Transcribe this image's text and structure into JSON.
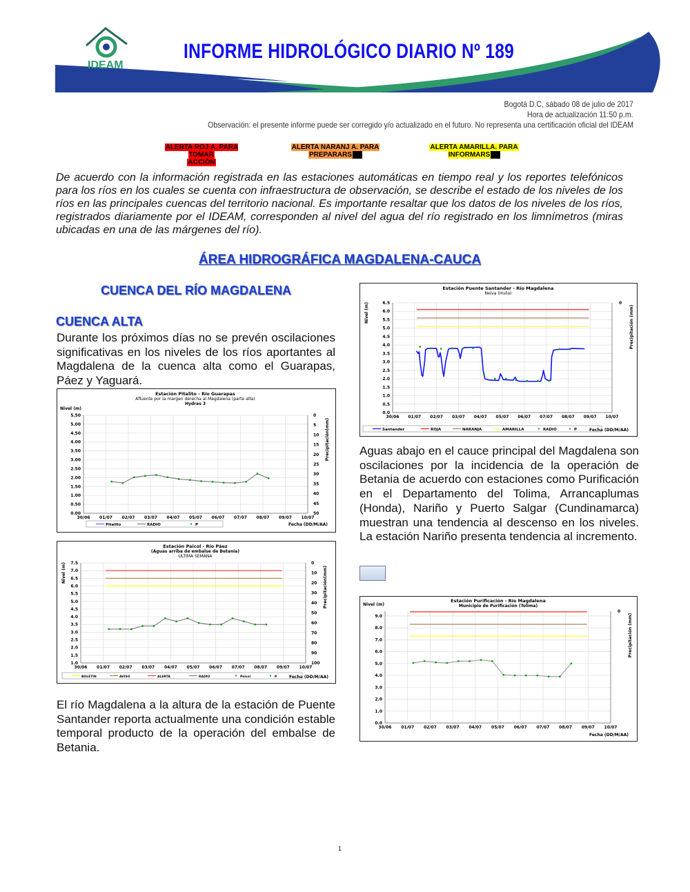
{
  "header": {
    "logo_text": "IDEAM",
    "title": "INFORME HIDROLÓGICO DIARIO Nº 189",
    "colors": {
      "blue": "#22409a",
      "green": "#2f9a6a",
      "title": "#1010f0"
    }
  },
  "meta": {
    "date": "Bogotá D.C, sábado 08 de julio de 2017",
    "update": "Hora de actualización 11:50 p.m.",
    "observation": "Observación: el presente informe puede ser corregido y/o actualizado en el futuro. No representa una certificación oficial del IDEAM"
  },
  "alerts": [
    {
      "line1": "ALERTA ROJ A. PARA TOMAR",
      "line2": "ACCIÓN",
      "color": "#ff0000"
    },
    {
      "line1": "ALERTA NARANJ A. PARA",
      "line2": "PREPARARS",
      "color": "#f79646"
    },
    {
      "line1": "ALERTA AMARILLA. PARA",
      "line2": "INFORMARS",
      "color": "#ffff00"
    }
  ],
  "intro": "De acuerdo con la información registrada en las estaciones automáticas en tiempo real y los reportes telefónicos para los ríos en los cuales se cuenta con infraestructura de observación, se describe el estado de los niveles de los ríos en las principales cuencas del territorio nacional. Es importante resaltar que los datos de los niveles de los ríos, registrados diariamente por el IDEAM, corresponden al nivel del agua del río registrado en los limnímetros (miras ubicadas en una de las márgenes del río).",
  "area_title": "ÁREA HIDROGRÁFICA MAGDALENA-CAUCA",
  "cuenca_title": "CUENCA DEL RÍO MAGDALENA",
  "subcuenca_title": "CUENCA ALTA",
  "paragraphs": {
    "alta": "Durante los próximos días no se prevén oscilaciones significativas en los niveles de los ríos aportantes al Magdalena de la cuenca alta como el Guarapas, Páez y Yaguará.",
    "santander": "El río Magdalena a la altura de la estación de Puente Santander reporta actualmente una condición estable temporal producto de la operación del embalse de Betania.",
    "cauce": "Aguas abajo en el cauce principal del Magdalena son oscilaciones por la incidencia de la operación de Betania de acuerdo con estaciones como Purificación en el Departamento del Tolima, Arrancaplumas (Honda), Nariño y Puerto Salgar (Cundinamarca) muestran una tendencia al descenso en los niveles. La estación Nariño presenta tendencia al incremento."
  },
  "page_number": "1",
  "chart_data": [
    {
      "id": "pitalito",
      "type": "line",
      "title": "Estación Pitalito  - Río Guarapas",
      "subtitle": "Afluente por la margen derecha al Magdalena (parte alta)",
      "subtitle2": "Hydras 3",
      "ylabel": "Nivel (m)",
      "y2label": "Precipitación(mm)",
      "xlabel": "Fecha (DD/M/AA)",
      "ylim": [
        0,
        5.5
      ],
      "yticks": [
        "0.00",
        "0.50",
        "1.00",
        "1.50",
        "2.00",
        "2.50",
        "3.00",
        "3.50",
        "4.00",
        "4.50",
        "5.00",
        "5.50"
      ],
      "y2ticks": [
        "0",
        "5",
        "10",
        "15",
        "20",
        "25",
        "30",
        "35",
        "40",
        "45",
        "50"
      ],
      "xticks": [
        "30/06",
        "01/07",
        "02/07",
        "03/07",
        "04/07",
        "05/07",
        "06/07",
        "07/07",
        "08/07",
        "09/07",
        "10/07"
      ],
      "grid": true,
      "thresholds": [],
      "series": [
        {
          "name": "Pitalito",
          "color": "#6666ff",
          "points": []
        },
        {
          "name": "RADIO",
          "color": "#808080",
          "marker": "#00a000",
          "points": [
            [
              "01/07 06:00",
              1.78
            ],
            [
              "01/07 18:00",
              1.7
            ],
            [
              "02/07 06:00",
              2.02
            ],
            [
              "02/07 18:00",
              2.1
            ],
            [
              "03/07 06:00",
              2.15
            ],
            [
              "03/07 18:00",
              2.02
            ],
            [
              "04/07 06:00",
              1.92
            ],
            [
              "04/07 18:00",
              1.87
            ],
            [
              "05/07 06:00",
              1.8
            ],
            [
              "05/07 18:00",
              1.77
            ],
            [
              "06/07 06:00",
              1.72
            ],
            [
              "06/07 18:00",
              1.7
            ],
            [
              "07/07 06:00",
              1.77
            ],
            [
              "07/07 18:00",
              2.22
            ],
            [
              "08/07 06:00",
              1.97
            ]
          ]
        },
        {
          "name": "P",
          "color": "#00a000",
          "points": []
        }
      ]
    },
    {
      "id": "paicol",
      "type": "line",
      "title": "Estación Paicol  - Río Páez",
      "subtitle": "(Aguas arriba de embalse de Betania)",
      "subtitle2": "ULTIMA SEMANA",
      "ylabel": "Nivel (m)",
      "y2label": "Precipitación(mm)",
      "xlabel": "Fecha (DD/M/AA)",
      "ylim": [
        1,
        7.5
      ],
      "yticks": [
        "1.0",
        "1.5",
        "2.0",
        "2.5",
        "3.0",
        "3.5",
        "4.0",
        "4.5",
        "5.0",
        "5.5",
        "6.0",
        "6.5",
        "7.0",
        "7.5"
      ],
      "y2ticks": [
        "0",
        "10",
        "20",
        "30",
        "40",
        "50",
        "60",
        "70",
        "80",
        "90",
        "100"
      ],
      "xticks": [
        "30/06",
        "01/07",
        "02/07",
        "03/07",
        "04/07",
        "05/07",
        "06/07",
        "07/07",
        "08/07",
        "09/07",
        "10/07"
      ],
      "grid": true,
      "thresholds": [
        {
          "name": "BOLETIN",
          "value": 6.0,
          "color": "#ffff00"
        },
        {
          "name": "AVISO",
          "value": 6.5,
          "color": "#b07a40"
        },
        {
          "name": "ALERTA",
          "value": 7.0,
          "color": "#ff4040"
        }
      ],
      "series": [
        {
          "name": "RADIO",
          "color": "#808080",
          "marker": "#00a000",
          "points": [
            [
              "01/07 06:00",
              3.2
            ],
            [
              "01/07 18:00",
              3.2
            ],
            [
              "02/07 06:00",
              3.2
            ],
            [
              "02/07 18:00",
              3.4
            ],
            [
              "03/07 06:00",
              3.4
            ],
            [
              "03/07 18:00",
              3.9
            ],
            [
              "04/07 06:00",
              3.7
            ],
            [
              "04/07 18:00",
              3.9
            ],
            [
              "05/07 06:00",
              3.6
            ],
            [
              "05/07 18:00",
              3.5
            ],
            [
              "06/07 06:00",
              3.5
            ],
            [
              "06/07 18:00",
              3.9
            ],
            [
              "07/07 06:00",
              3.7
            ],
            [
              "07/07 18:00",
              3.5
            ],
            [
              "08/07 06:00",
              3.5
            ]
          ]
        },
        {
          "name": "Paicol",
          "color": "#4060c0",
          "points": []
        },
        {
          "name": "P",
          "color": "#00a000",
          "points": []
        }
      ]
    },
    {
      "id": "santander",
      "type": "line",
      "title": "Estación Puente Santander - Río Magdalena",
      "subtitle": "Neiva (Huila)",
      "subtitle2": "",
      "ylabel": "Nivel (m)",
      "y2label": "Precipitación (mm)",
      "xlabel": "Fecha (DD/M/AA)",
      "ylim": [
        0,
        6.5
      ],
      "yticks": [
        "0.0",
        "0.5",
        "1.0",
        "1.5",
        "2.0",
        "2.5",
        "3.0",
        "3.5",
        "4.0",
        "4.5",
        "5.0",
        "5.5",
        "6.0",
        "6.5"
      ],
      "y2ticks": [
        "0"
      ],
      "xticks": [
        "30/06",
        "01/07",
        "02/07",
        "03/07",
        "04/07",
        "05/07",
        "06/07",
        "07/07",
        "08/07",
        "09/07",
        "10/07"
      ],
      "grid": true,
      "thresholds": [
        {
          "name": "ROJA",
          "value": 6.1,
          "color": "#ff2020"
        },
        {
          "name": "NARANJA",
          "value": 5.6,
          "color": "#b08060"
        },
        {
          "name": "AMARILLA",
          "value": 5.1,
          "color": "#ffff40"
        }
      ],
      "series": [
        {
          "name": "Santander",
          "color": "#1010ff",
          "points": [
            [
              "01/07 02:00",
              3.65
            ],
            [
              "01/07 04:00",
              3.5
            ],
            [
              "01/07 05:00",
              3.6
            ],
            [
              "01/07 06:00",
              3.0
            ],
            [
              "01/07 08:00",
              2.2
            ],
            [
              "01/07 09:00",
              2.15
            ],
            [
              "01/07 11:00",
              3.0
            ],
            [
              "01/07 12:00",
              3.7
            ],
            [
              "01/07 14:00",
              3.8
            ],
            [
              "02/07 00:00",
              3.8
            ],
            [
              "02/07 02:00",
              3.3
            ],
            [
              "02/07 03:00",
              3.3
            ],
            [
              "02/07 04:00",
              3.55
            ],
            [
              "02/07 05:00",
              3.3
            ],
            [
              "02/07 07:00",
              2.4
            ],
            [
              "02/07 08:00",
              2.15
            ],
            [
              "02/07 10:00",
              3.0
            ],
            [
              "02/07 13:00",
              3.75
            ],
            [
              "02/07 15:00",
              3.8
            ],
            [
              "02/07 23:00",
              3.8
            ],
            [
              "03/07 01:00",
              3.5
            ],
            [
              "03/07 02:00",
              3.2
            ],
            [
              "03/07 04:00",
              3.75
            ],
            [
              "03/07 06:00",
              3.85
            ],
            [
              "03/07 23:00",
              3.87
            ],
            [
              "04/07 01:00",
              3.8
            ],
            [
              "04/07 03:00",
              2.5
            ],
            [
              "04/07 05:00",
              2.0
            ],
            [
              "04/07 09:00",
              1.93
            ],
            [
              "04/07 20:00",
              1.9
            ],
            [
              "04/07 22:00",
              2.3
            ],
            [
              "05/07 01:00",
              1.95
            ],
            [
              "05/07 12:00",
              1.92
            ],
            [
              "05/07 14:00",
              2.1
            ],
            [
              "05/07 16:00",
              1.9
            ],
            [
              "05/07 19:00",
              1.85
            ],
            [
              "06/07 18:00",
              1.85
            ],
            [
              "06/07 20:00",
              2.2
            ],
            [
              "06/07 21:00",
              2.5
            ],
            [
              "06/07 23:00",
              2.0
            ],
            [
              "07/07 02:00",
              1.9
            ],
            [
              "07/07 05:00",
              1.92
            ],
            [
              "07/07 06:00",
              3.3
            ],
            [
              "07/07 08:00",
              3.7
            ],
            [
              "07/07 14:00",
              3.75
            ],
            [
              "08/07 00:00",
              3.75
            ],
            [
              "08/07 04:00",
              3.8
            ],
            [
              "08/07 18:00",
              3.78
            ]
          ]
        },
        {
          "name": "RADIO",
          "color": "#00a000",
          "marker": "#00a000",
          "markersOnly": true,
          "points": [
            [
              "01/07 06:00",
              3.9
            ],
            [
              "01/07 18:00",
              3.8
            ],
            [
              "02/07 05:00",
              3.78
            ],
            [
              "02/07 17:00",
              3.8
            ],
            [
              "03/07 05:00",
              3.8
            ],
            [
              "03/07 16:00",
              3.82
            ],
            [
              "04/07 04:00",
              2.25
            ],
            [
              "04/07 16:00",
              2.0
            ],
            [
              "05/07 04:00",
              2.0
            ],
            [
              "05/07 15:00",
              1.92
            ],
            [
              "06/07 03:00",
              1.88
            ],
            [
              "06/07 15:00",
              1.88
            ],
            [
              "07/07 03:00",
              1.88
            ],
            [
              "07/07 14:00",
              3.75
            ],
            [
              "08/07 02:00",
              3.75
            ]
          ]
        },
        {
          "name": "P",
          "color": "#00a000",
          "points": []
        }
      ]
    },
    {
      "id": "purificacion",
      "type": "line",
      "title": "Estación Purificación - Río Magdalena",
      "subtitle": "Municipio de Purificación (Tolima)",
      "subtitle2": "",
      "ylabel": "Nivel (m)",
      "y2label": "Precipitación (mm)",
      "xlabel": "Fecha (DD/M/AA)",
      "ylim": [
        0,
        9.4
      ],
      "yticks": [
        "0.0",
        "1.0",
        "2.0",
        "3.0",
        "4.0",
        "5.0",
        "6.0",
        "7.0",
        "8.0",
        "9.0"
      ],
      "y2ticks": [
        "0"
      ],
      "xticks": [
        "30/06",
        "01/07",
        "02/07",
        "03/07",
        "04/07",
        "05/07",
        "06/07",
        "07/07",
        "08/07",
        "09/07",
        "10/07"
      ],
      "grid": true,
      "thresholds": [
        {
          "value": 9.35,
          "color": "#ff2020"
        },
        {
          "value": 8.3,
          "color": "#a07050"
        },
        {
          "value": 7.3,
          "color": "#ffff20"
        }
      ],
      "series": [
        {
          "color": "#a0a0a0",
          "marker": "#00a000",
          "points": [
            [
              "01/07 06:00",
              5.05
            ],
            [
              "01/07 18:00",
              5.2
            ],
            [
              "02/07 06:00",
              5.1
            ],
            [
              "02/07 18:00",
              5.05
            ],
            [
              "03/07 06:00",
              5.2
            ],
            [
              "03/07 18:00",
              5.2
            ],
            [
              "04/07 06:00",
              5.3
            ],
            [
              "04/07 18:00",
              5.2
            ],
            [
              "05/07 06:00",
              4.05
            ],
            [
              "05/07 18:00",
              4.0
            ],
            [
              "06/07 06:00",
              4.0
            ],
            [
              "06/07 18:00",
              4.0
            ],
            [
              "07/07 06:00",
              3.9
            ],
            [
              "07/07 18:00",
              3.9
            ],
            [
              "08/07 06:00",
              5.0
            ]
          ]
        }
      ]
    }
  ]
}
